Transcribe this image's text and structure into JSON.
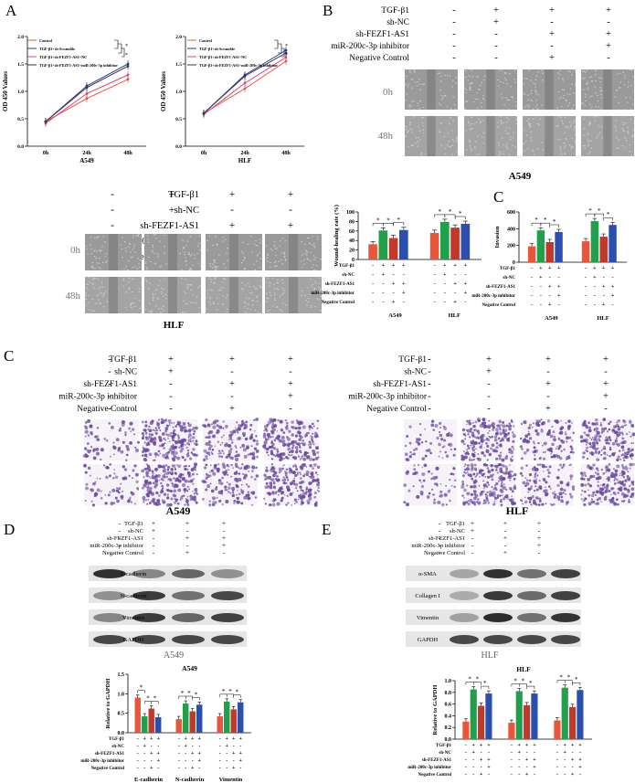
{
  "panels": {
    "A": "A",
    "B": "B",
    "C1": "C",
    "C2": "C",
    "D": "D",
    "E": "E"
  },
  "conditions": [
    "TGF-β1",
    "sh-NC",
    "sh-FEZF1-AS1",
    "miR-200c-3p inhibitor",
    "Negative Control"
  ],
  "conditions_bold": [
    "TGF-β1",
    "sh-NC",
    "sh-FEZF1-AS1",
    "miR-200c-3p inhibitor",
    "Negative Control"
  ],
  "groups4": [
    [
      "-",
      "-",
      "-",
      "-",
      "-"
    ],
    [
      "+",
      "+",
      "-",
      "-",
      "-"
    ],
    [
      "+",
      "-",
      "+",
      "-",
      "+"
    ],
    [
      "+",
      "-",
      "+",
      "+",
      "-"
    ]
  ],
  "growth_charts": [
    {
      "cell": "A549",
      "ylabel": "OD 450 Values",
      "x": [
        "0h",
        "24h",
        "48h"
      ],
      "yticks": [
        "0.0",
        "0.5",
        "1.0",
        "1.5",
        "2.0"
      ],
      "legend": [
        "Control",
        "TGF-β1+sh-Scramble",
        "TGF-β1+sh-FEZF1-AS1+NC",
        "TGF-β1+sh-FEZF1-AS1+miR-200c-3p inhibitor"
      ],
      "colors": [
        "#e8553a",
        "#2b3a8f",
        "#e0407a",
        "#333355"
      ],
      "series": [
        [
          0.45,
          0.87,
          1.22
        ],
        [
          0.45,
          1.1,
          1.5
        ],
        [
          0.42,
          0.96,
          1.3
        ],
        [
          0.45,
          1.07,
          1.46
        ]
      ],
      "sig": "*"
    },
    {
      "cell": "HLF",
      "ylabel": "OD 450 Values",
      "x": [
        "0h",
        "24h",
        "48h"
      ],
      "yticks": [
        "0.0",
        "0.5",
        "1.0",
        "1.5",
        "2.0"
      ],
      "legend": [
        "Control",
        "TGF-β1+sh-Scramble",
        "TGF-β1+sh-FEZF1-AS1+NC",
        "TGF-β1+sh-FEZF1-AS1+miR-200c-3p inhibitor"
      ],
      "colors": [
        "#e8553a",
        "#2b3a8f",
        "#e0407a",
        "#333355"
      ],
      "series": [
        [
          0.6,
          1.05,
          1.55
        ],
        [
          0.6,
          1.3,
          1.75
        ],
        [
          0.58,
          1.15,
          1.62
        ],
        [
          0.6,
          1.28,
          1.7
        ]
      ],
      "sig": "*"
    }
  ],
  "time_labels": {
    "t0": "0h",
    "t48": "48h"
  },
  "cells": {
    "A549": "A549",
    "HLF": "HLF"
  },
  "wound_chart": {
    "ylabel": "Wound-healing rate (%)",
    "yticks": [
      "0",
      "20",
      "40",
      "60",
      "80",
      "100"
    ],
    "ymax": 100,
    "values_A549": [
      32,
      61,
      45,
      62
    ],
    "values_HLF": [
      56,
      79,
      67,
      75
    ],
    "sig": "*"
  },
  "invasion_chart": {
    "ylabel": "Invasion",
    "yticks": [
      "0",
      "200",
      "400",
      "600"
    ],
    "ymax": 600,
    "values_A549": [
      190,
      380,
      240,
      360
    ],
    "values_HLF": [
      250,
      490,
      305,
      445
    ],
    "sig": "*"
  },
  "bar_colors": [
    "#e8553a",
    "#21a04b",
    "#c0392b",
    "#2a4fb0"
  ],
  "blot_labels_D": [
    "E-cadherin",
    "N-cadherin",
    "Vimentin",
    "GAPDH"
  ],
  "blot_labels_E": [
    "α-SMA",
    "Collagen I",
    "Vimentin",
    "GAPDH"
  ],
  "bar_D": {
    "title": "A549",
    "ylabel": "Relative to GAPDH",
    "yticks": [
      "0.0",
      "0.5",
      "1.0",
      "1.5"
    ],
    "ymax": 1.5,
    "groups": [
      "E-cadherin",
      "N-cadherin",
      "Vimentin"
    ],
    "values": [
      [
        0.9,
        0.42,
        0.62,
        0.4
      ],
      [
        0.35,
        0.75,
        0.55,
        0.72
      ],
      [
        0.42,
        0.8,
        0.6,
        0.78
      ]
    ],
    "sig": "*"
  },
  "bar_E": {
    "title": "HLF",
    "ylabel": "Relative to GAPDH",
    "yticks": [
      "0.0",
      "0.2",
      "0.4",
      "0.6",
      "0.8",
      "1.0"
    ],
    "ymax": 1.0,
    "groups": [
      "α-SMA",
      "Collagen I",
      "Vimentin"
    ],
    "values": [
      [
        0.3,
        0.85,
        0.57,
        0.78
      ],
      [
        0.28,
        0.82,
        0.58,
        0.78
      ],
      [
        0.32,
        0.88,
        0.55,
        0.84
      ]
    ],
    "sig": "*"
  }
}
